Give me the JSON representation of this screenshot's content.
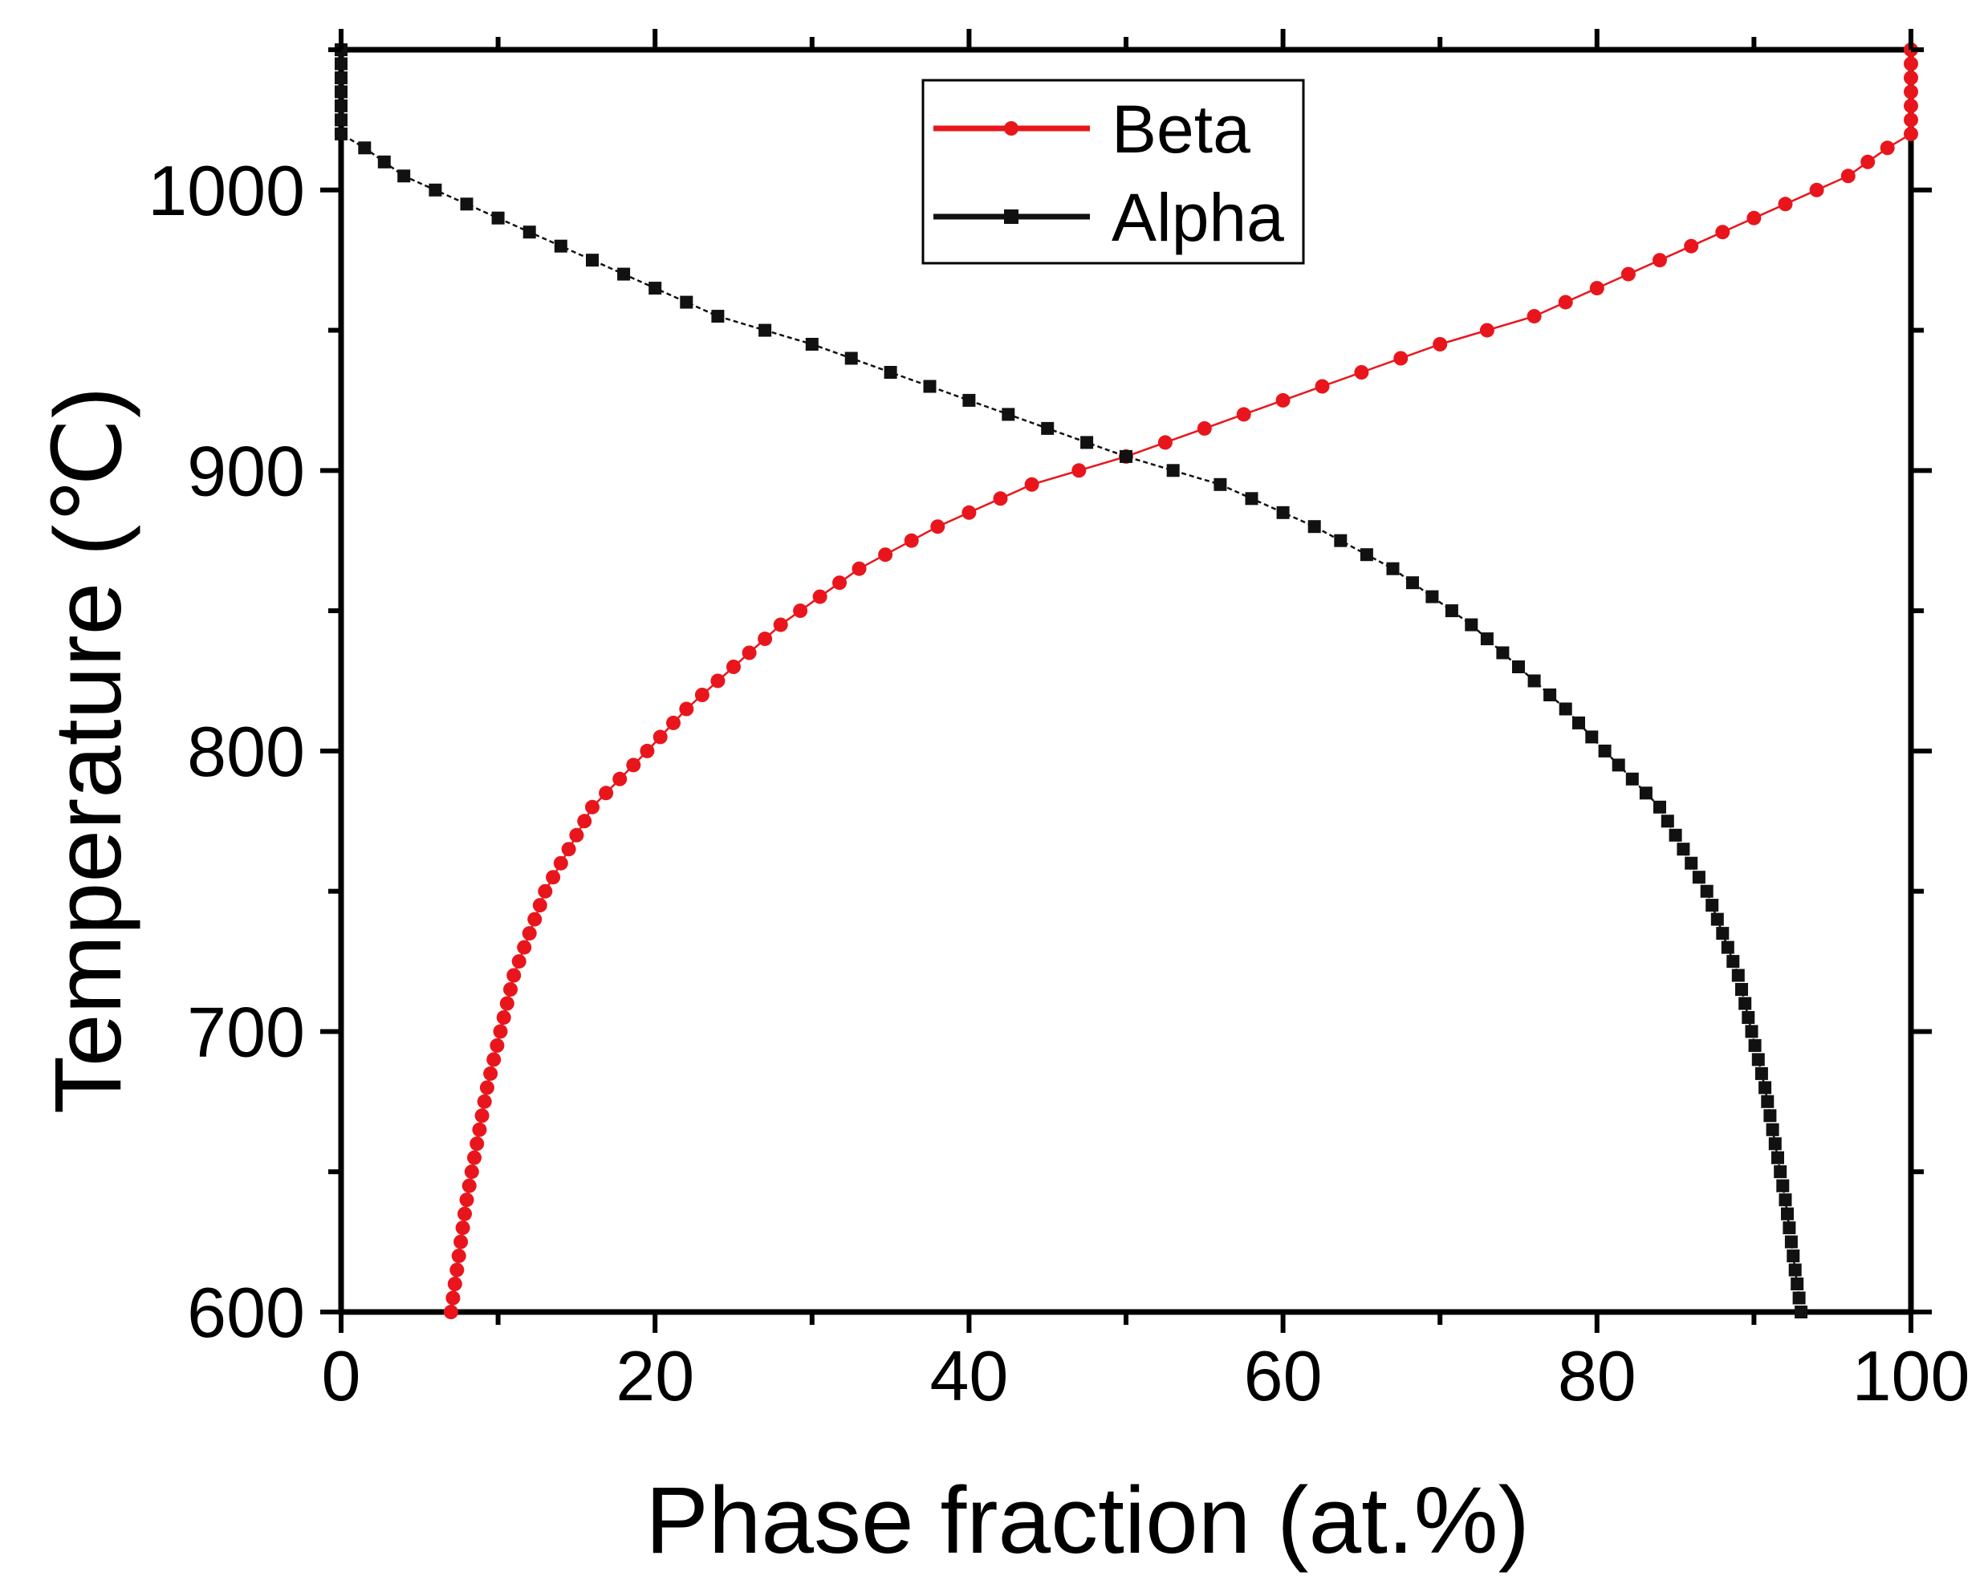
{
  "chart_data": {
    "type": "line",
    "title": "",
    "xlabel": "Phase fraction (at.%)",
    "ylabel": "Temperature (℃)",
    "xlim": [
      0,
      100
    ],
    "ylim": [
      600,
      1050
    ],
    "x_ticks": [
      "0",
      "20",
      "40",
      "60",
      "80",
      "100"
    ],
    "y_ticks": [
      "600",
      "700",
      "800",
      "900",
      "1000"
    ],
    "grid": false,
    "legend_position": "top-center",
    "series": [
      {
        "name": "Beta",
        "color": "#e8161c",
        "marker": "circle",
        "points": [
          [
            7.0,
            600
          ],
          [
            8.0,
            640
          ],
          [
            9.3,
            680
          ],
          [
            11.0,
            720
          ],
          [
            13.0,
            750
          ],
          [
            16.0,
            780
          ],
          [
            19.5,
            800
          ],
          [
            22.0,
            815
          ],
          [
            28.0,
            845
          ],
          [
            33.0,
            865
          ],
          [
            38.0,
            880
          ],
          [
            44.0,
            895
          ],
          [
            50.0,
            905
          ],
          [
            55.0,
            915
          ],
          [
            60.0,
            925
          ],
          [
            65.0,
            935
          ],
          [
            70.0,
            945
          ],
          [
            76.0,
            955
          ],
          [
            82.0,
            970
          ],
          [
            88.0,
            985
          ],
          [
            92.0,
            995
          ],
          [
            96.0,
            1005
          ],
          [
            98.5,
            1015
          ],
          [
            100.0,
            1020
          ],
          [
            100.0,
            1050
          ]
        ]
      },
      {
        "name": "Alpha",
        "color": "#111111",
        "marker": "square",
        "points": [
          [
            0.0,
            1050
          ],
          [
            0.0,
            1020
          ],
          [
            1.5,
            1015
          ],
          [
            4.0,
            1005
          ],
          [
            8.0,
            995
          ],
          [
            12.0,
            985
          ],
          [
            18.0,
            970
          ],
          [
            24.0,
            955
          ],
          [
            30.0,
            945
          ],
          [
            35.0,
            935
          ],
          [
            40.0,
            925
          ],
          [
            45.0,
            915
          ],
          [
            50.0,
            905
          ],
          [
            56.0,
            895
          ],
          [
            62.0,
            880
          ],
          [
            67.0,
            865
          ],
          [
            72.0,
            845
          ],
          [
            78.0,
            815
          ],
          [
            80.5,
            800
          ],
          [
            84.0,
            780
          ],
          [
            87.0,
            750
          ],
          [
            89.0,
            720
          ],
          [
            90.7,
            680
          ],
          [
            92.0,
            640
          ],
          [
            93.0,
            600
          ]
        ]
      }
    ]
  }
}
